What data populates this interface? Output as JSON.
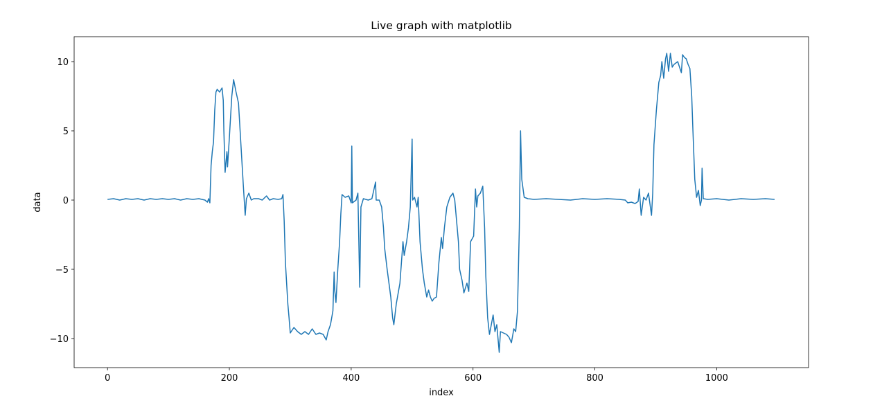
{
  "chart_data": {
    "type": "line",
    "title": "Live graph with matplotlib",
    "x_label": "index",
    "y_label": "data",
    "xlim": [
      -54.8,
      1150.8
    ],
    "ylim": [
      -12.1,
      11.8
    ],
    "xticks": [
      0,
      200,
      400,
      600,
      800,
      1000
    ],
    "yticks": [
      {
        "value": -10,
        "label": "−10"
      },
      {
        "value": -5,
        "label": "−5"
      },
      0,
      5,
      10
    ],
    "grid": false,
    "series": [
      {
        "color": "#1f77b4",
        "x": [
          0,
          10,
          20,
          30,
          40,
          50,
          60,
          70,
          80,
          90,
          100,
          110,
          120,
          130,
          140,
          150,
          160,
          164,
          166,
          168,
          170,
          172,
          174,
          176,
          178,
          180,
          184,
          188,
          190,
          191,
          193,
          196,
          197,
          200,
          204,
          207,
          211,
          215,
          219,
          221,
          223,
          226,
          228,
          232,
          236,
          240,
          248,
          254,
          261,
          266,
          272,
          280,
          286,
          288,
          290,
          292,
          294,
          296,
          298,
          300,
          306,
          312,
          318,
          324,
          330,
          336,
          342,
          348,
          354,
          359,
          362,
          366,
          370,
          372,
          373,
          375,
          378,
          381,
          383,
          385,
          390,
          396,
          400,
          401,
          402,
          408,
          411,
          414,
          416,
          420,
          428,
          434,
          440,
          441,
          446,
          450,
          453,
          455,
          459,
          465,
          468,
          470,
          474,
          478,
          480,
          485,
          487,
          491,
          494,
          497,
          500,
          501,
          504,
          508,
          510,
          513,
          517,
          520,
          524,
          527,
          530,
          533,
          536,
          540,
          544,
          548,
          550,
          553,
          557,
          562,
          567,
          570,
          573,
          576,
          578,
          582,
          585,
          590,
          593,
          596,
          601,
          604,
          606,
          608,
          612,
          616,
          619,
          621,
          624,
          627,
          630,
          633,
          636,
          639,
          643,
          645,
          650,
          655,
          659,
          663,
          667,
          670,
          673,
          676,
          678,
          680,
          684,
          690,
          700,
          720,
          740,
          760,
          780,
          800,
          820,
          840,
          850,
          854,
          860,
          866,
          871,
          873,
          876,
          880,
          884,
          888,
          893,
          895,
          897,
          901,
          905,
          908,
          910,
          913,
          916,
          918,
          921,
          924,
          927,
          930,
          936,
          939,
          942,
          944,
          947,
          950,
          953,
          956,
          959,
          961,
          964,
          967,
          970,
          973,
          975,
          976,
          978,
          985,
          1000,
          1020,
          1040,
          1060,
          1080,
          1095
        ],
        "values": [
          0.05,
          0.1,
          0.0,
          0.1,
          0.05,
          0.1,
          0.0,
          0.1,
          0.05,
          0.1,
          0.05,
          0.1,
          0.0,
          0.1,
          0.05,
          0.1,
          0.0,
          -0.15,
          0.1,
          -0.2,
          2.5,
          3.5,
          4.2,
          6.5,
          7.8,
          8.0,
          7.8,
          8.1,
          7.2,
          5.0,
          2.0,
          3.5,
          2.4,
          4.5,
          7.5,
          8.7,
          7.8,
          7.0,
          4.0,
          2.5,
          1.0,
          -1.1,
          0.1,
          0.5,
          0.0,
          0.1,
          0.1,
          0.0,
          0.3,
          0.0,
          0.1,
          0.05,
          0.1,
          0.4,
          -1.5,
          -4.5,
          -6.0,
          -7.5,
          -8.5,
          -9.6,
          -9.2,
          -9.5,
          -9.7,
          -9.5,
          -9.7,
          -9.3,
          -9.7,
          -9.6,
          -9.7,
          -10.1,
          -9.5,
          -9.0,
          -8.0,
          -5.2,
          -6.5,
          -7.4,
          -5.0,
          -3.0,
          -1.0,
          0.4,
          0.2,
          0.3,
          -0.2,
          3.9,
          -0.2,
          0.0,
          0.5,
          -6.3,
          -0.5,
          0.1,
          0.0,
          0.1,
          1.3,
          0.0,
          0.0,
          -0.5,
          -2.0,
          -3.5,
          -5.0,
          -7.0,
          -8.5,
          -9.0,
          -7.5,
          -6.5,
          -6.0,
          -3.0,
          -4.0,
          -3.0,
          -2.0,
          -0.5,
          4.4,
          0.0,
          0.2,
          -0.5,
          0.2,
          -3.0,
          -5.0,
          -6.0,
          -7.0,
          -6.5,
          -7.0,
          -7.3,
          -7.1,
          -7.0,
          -4.5,
          -2.7,
          -3.5,
          -2.0,
          -0.5,
          0.2,
          0.5,
          0.0,
          -1.5,
          -3.0,
          -5.0,
          -5.8,
          -6.7,
          -6.0,
          -6.6,
          -3.0,
          -2.6,
          0.8,
          -0.5,
          0.3,
          0.5,
          1.0,
          -2.0,
          -5.5,
          -8.5,
          -9.7,
          -9.0,
          -8.3,
          -9.5,
          -9.0,
          -11.0,
          -9.5,
          -9.6,
          -9.7,
          -9.9,
          -10.3,
          -9.3,
          -9.5,
          -8.0,
          -2.0,
          5.0,
          1.5,
          0.2,
          0.1,
          0.05,
          0.1,
          0.05,
          0.0,
          0.1,
          0.05,
          0.1,
          0.05,
          0.0,
          -0.2,
          -0.15,
          -0.25,
          -0.1,
          0.8,
          -1.1,
          0.2,
          0.0,
          0.5,
          -1.1,
          0.5,
          4.0,
          6.5,
          8.5,
          9.0,
          10.0,
          8.8,
          10.2,
          10.6,
          9.3,
          10.6,
          9.6,
          9.8,
          10.0,
          9.6,
          9.2,
          10.5,
          10.3,
          10.2,
          9.8,
          9.5,
          7.5,
          5.0,
          1.5,
          0.2,
          0.7,
          -0.4,
          0.0,
          2.3,
          0.1,
          0.05,
          0.1,
          0.0,
          0.1,
          0.05,
          0.1,
          0.05
        ]
      }
    ]
  }
}
